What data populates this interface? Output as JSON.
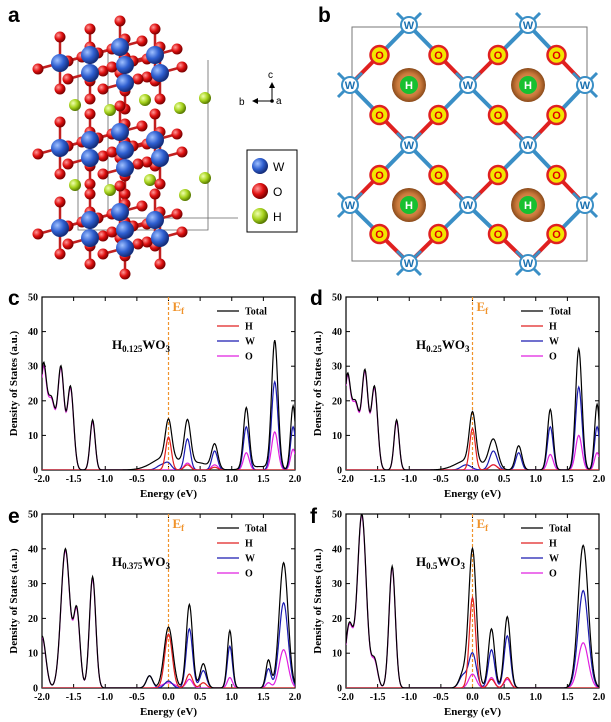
{
  "panel_labels": [
    "a",
    "b",
    "c",
    "d",
    "e",
    "f"
  ],
  "structure_a": {
    "axis_labels": {
      "c": "c",
      "b": "b",
      "a": "a"
    },
    "legend": [
      {
        "symbol": "W",
        "color": "#2f5fd0"
      },
      {
        "symbol": "O",
        "color": "#e01010"
      },
      {
        "symbol": "H",
        "color": "#a8d41e"
      }
    ]
  },
  "structure_b": {
    "atom_letters": {
      "W": "W",
      "O": "O",
      "H": "H"
    },
    "colors": {
      "bond_blue": "#3a8fc6",
      "bond_red": "#e02020",
      "o_fill": "#f2e600",
      "h_halo": "#c8783a",
      "h_core": "#17c030"
    }
  },
  "chart_data": [
    {
      "type": "line",
      "panel": "c",
      "formula_main": "H",
      "formula_sub": "0.125",
      "formula_rest": "WO",
      "formula_sub2": "3",
      "fermi_label": "E",
      "fermi_sub": "f",
      "fermi_x": 0.0,
      "xlabel": "Energy (eV)",
      "ylabel": "Density of States (a.u.)",
      "xlim": [
        -2.0,
        2.0
      ],
      "ylim": [
        0,
        50
      ],
      "xticks": [
        "-2.0",
        "-1.5",
        "-1.0",
        "-0.5",
        "0.0",
        "0.5",
        "1.0",
        "1.5",
        "2.0"
      ],
      "yticks": [
        "0",
        "10",
        "20",
        "30",
        "40",
        "50"
      ],
      "series": [
        {
          "name": "Total",
          "color": "#000000",
          "peaks": [
            [
              -1.98,
              29,
              0.05
            ],
            [
              -1.85,
              20,
              0.06
            ],
            [
              -1.7,
              29,
              0.05
            ],
            [
              -1.55,
              24,
              0.05
            ],
            [
              -1.2,
              14.5,
              0.04
            ],
            [
              -0.05,
              3,
              0.2
            ],
            [
              0.0,
              11,
              0.05
            ],
            [
              0.3,
              12.5,
              0.05
            ],
            [
              0.73,
              7,
              0.05
            ],
            [
              1.23,
              17.5,
              0.045
            ],
            [
              1.68,
              37,
              0.05
            ],
            [
              1.97,
              18.5,
              0.04
            ],
            [
              0.15,
              1,
              0.3
            ],
            [
              0.5,
              1.5,
              0.15
            ],
            [
              1.45,
              1,
              0.2
            ]
          ]
        },
        {
          "name": "H",
          "color": "#e02020",
          "peaks": [
            [
              0.0,
              9.5,
              0.045
            ],
            [
              0.3,
              1.5,
              0.05
            ],
            [
              0.73,
              0.8,
              0.05
            ]
          ]
        },
        {
          "name": "W",
          "color": "#1a1ab0",
          "peaks": [
            [
              -0.1,
              1.5,
              0.08
            ],
            [
              0.0,
              1.5,
              0.05
            ],
            [
              0.3,
              9,
              0.045
            ],
            [
              0.73,
              5.5,
              0.045
            ],
            [
              1.23,
              12.5,
              0.045
            ],
            [
              1.68,
              25.5,
              0.05
            ],
            [
              1.97,
              12.5,
              0.04
            ]
          ]
        },
        {
          "name": "O",
          "color": "#e020e0",
          "peaks": [
            [
              -1.98,
              28,
              0.05
            ],
            [
              -1.85,
              19.5,
              0.06
            ],
            [
              -1.7,
              28.5,
              0.05
            ],
            [
              -1.55,
              23.5,
              0.05
            ],
            [
              -1.2,
              14,
              0.04
            ],
            [
              0.3,
              2,
              0.05
            ],
            [
              0.73,
              1.5,
              0.05
            ],
            [
              1.23,
              5,
              0.045
            ],
            [
              1.68,
              11,
              0.05
            ],
            [
              1.97,
              6,
              0.04
            ]
          ]
        }
      ]
    },
    {
      "type": "line",
      "panel": "d",
      "formula_main": "H",
      "formula_sub": "0.25",
      "formula_rest": "WO",
      "formula_sub2": "3",
      "fermi_label": "E",
      "fermi_sub": "f",
      "fermi_x": 0.0,
      "xlabel": "Energy (eV)",
      "ylabel": "Density of States (a.u.)",
      "xlim": [
        -2.0,
        2.0
      ],
      "ylim": [
        0,
        50
      ],
      "xticks": [
        "-2.0",
        "-1.5",
        "-1.0",
        "-0.5",
        "0.0",
        "0.5",
        "1.0",
        "1.5",
        "2.0"
      ],
      "yticks": [
        "0",
        "10",
        "20",
        "30",
        "40",
        "50"
      ],
      "series": [
        {
          "name": "Total",
          "color": "#000000",
          "peaks": [
            [
              -1.98,
              26,
              0.05
            ],
            [
              -1.85,
              19,
              0.06
            ],
            [
              -1.7,
              28,
              0.05
            ],
            [
              -1.55,
              24,
              0.05
            ],
            [
              -1.2,
              14.5,
              0.04
            ],
            [
              -0.05,
              3,
              0.2
            ],
            [
              0.0,
              14,
              0.05
            ],
            [
              0.33,
              8.5,
              0.07
            ],
            [
              0.73,
              7,
              0.05
            ],
            [
              1.23,
              17.5,
              0.045
            ],
            [
              1.68,
              35,
              0.05
            ],
            [
              1.97,
              19,
              0.04
            ]
          ]
        },
        {
          "name": "H",
          "color": "#e02020",
          "peaks": [
            [
              0.0,
              12,
              0.045
            ],
            [
              0.33,
              1.5,
              0.06
            ]
          ]
        },
        {
          "name": "W",
          "color": "#1a1ab0",
          "peaks": [
            [
              -0.1,
              1.5,
              0.08
            ],
            [
              0.33,
              5.5,
              0.06
            ],
            [
              0.73,
              5,
              0.045
            ],
            [
              1.23,
              12.5,
              0.045
            ],
            [
              1.68,
              24,
              0.05
            ],
            [
              1.97,
              12.5,
              0.04
            ]
          ]
        },
        {
          "name": "O",
          "color": "#e020e0",
          "peaks": [
            [
              -1.98,
              25.5,
              0.05
            ],
            [
              -1.85,
              18.5,
              0.06
            ],
            [
              -1.7,
              27.5,
              0.05
            ],
            [
              -1.55,
              23.5,
              0.05
            ],
            [
              -1.2,
              14,
              0.04
            ],
            [
              0.33,
              1.5,
              0.06
            ],
            [
              1.23,
              4.5,
              0.045
            ],
            [
              1.68,
              10,
              0.05
            ],
            [
              1.97,
              5,
              0.04
            ]
          ]
        }
      ]
    },
    {
      "type": "line",
      "panel": "e",
      "formula_main": "H",
      "formula_sub": "0.375",
      "formula_rest": "WO",
      "formula_sub2": "3",
      "fermi_label": "E",
      "fermi_sub": "f",
      "fermi_x": 0.0,
      "xlabel": "Energy (eV)",
      "ylabel": "Density of States (a.u.)",
      "xlim": [
        -2.0,
        2.0
      ],
      "ylim": [
        0,
        50
      ],
      "xticks": [
        "-2.0",
        "-1.5",
        "-1.0",
        "-0.5",
        "0.0",
        "0.5",
        "1.0",
        "1.5",
        "2.0"
      ],
      "yticks": [
        "0",
        "10",
        "20",
        "30",
        "40",
        "50"
      ],
      "series": [
        {
          "name": "Total",
          "color": "#000000",
          "peaks": [
            [
              -2.0,
              15,
              0.06
            ],
            [
              -1.63,
              40,
              0.07
            ],
            [
              -1.45,
              22,
              0.05
            ],
            [
              -1.2,
              32,
              0.05
            ],
            [
              -0.3,
              3.5,
              0.05
            ],
            [
              0.0,
              17.5,
              0.07
            ],
            [
              0.33,
              24,
              0.05
            ],
            [
              0.55,
              7,
              0.05
            ],
            [
              0.97,
              16.5,
              0.04
            ],
            [
              1.58,
              8,
              0.04
            ],
            [
              1.82,
              36,
              0.07
            ]
          ]
        },
        {
          "name": "H",
          "color": "#e02020",
          "peaks": [
            [
              0.0,
              15.5,
              0.06
            ],
            [
              0.33,
              4,
              0.05
            ],
            [
              0.55,
              1.5,
              0.05
            ]
          ]
        },
        {
          "name": "W",
          "color": "#1a1ab0",
          "peaks": [
            [
              -0.3,
              3.5,
              0.05
            ],
            [
              0.0,
              2,
              0.06
            ],
            [
              0.33,
              17,
              0.05
            ],
            [
              0.55,
              5,
              0.05
            ],
            [
              0.97,
              12,
              0.04
            ],
            [
              1.58,
              5.5,
              0.04
            ],
            [
              1.82,
              24.5,
              0.07
            ]
          ]
        },
        {
          "name": "O",
          "color": "#e020e0",
          "peaks": [
            [
              -2.0,
              14.5,
              0.06
            ],
            [
              -1.63,
              39.5,
              0.07
            ],
            [
              -1.45,
              21.5,
              0.05
            ],
            [
              -1.2,
              31.5,
              0.05
            ],
            [
              0.0,
              1.5,
              0.1
            ],
            [
              0.33,
              2.5,
              0.05
            ],
            [
              0.97,
              3,
              0.04
            ],
            [
              1.58,
              1.5,
              0.04
            ],
            [
              1.82,
              11,
              0.07
            ]
          ]
        }
      ]
    },
    {
      "type": "line",
      "panel": "f",
      "formula_main": "H",
      "formula_sub": "0.5",
      "formula_rest": "WO",
      "formula_sub2": "3",
      "fermi_label": "E",
      "fermi_sub": "f",
      "fermi_x": 0.0,
      "xlabel": "Energy (eV)",
      "ylabel": "Density of States (a.u.)",
      "xlim": [
        -2.0,
        2.0
      ],
      "ylim": [
        0,
        50
      ],
      "xticks": [
        "-2.0",
        "-1.5",
        "-1.0",
        "-0.5",
        "0.0",
        "0.5",
        "1.0",
        "1.5",
        "2.0"
      ],
      "yticks": [
        "0",
        "10",
        "20",
        "30",
        "40",
        "50"
      ],
      "series": [
        {
          "name": "Total",
          "color": "#000000",
          "peaks": [
            [
              -1.95,
              18,
              0.06
            ],
            [
              -1.75,
              50,
              0.07
            ],
            [
              -1.55,
              8,
              0.05
            ],
            [
              -1.27,
              35,
              0.05
            ],
            [
              -0.15,
              4,
              0.06
            ],
            [
              0.0,
              40,
              0.06
            ],
            [
              0.3,
              17,
              0.05
            ],
            [
              0.55,
              20.5,
              0.05
            ],
            [
              1.75,
              41,
              0.08
            ]
          ]
        },
        {
          "name": "H",
          "color": "#e02020",
          "peaks": [
            [
              0.0,
              26,
              0.05
            ],
            [
              0.3,
              2.5,
              0.05
            ],
            [
              0.55,
              3,
              0.05
            ]
          ]
        },
        {
          "name": "W",
          "color": "#1a1ab0",
          "peaks": [
            [
              -0.15,
              3.5,
              0.06
            ],
            [
              0.0,
              10,
              0.06
            ],
            [
              0.3,
              11,
              0.05
            ],
            [
              0.55,
              15,
              0.05
            ],
            [
              1.75,
              28,
              0.08
            ]
          ]
        },
        {
          "name": "O",
          "color": "#e020e0",
          "peaks": [
            [
              -1.95,
              17.5,
              0.06
            ],
            [
              -1.75,
              49.5,
              0.07
            ],
            [
              -1.55,
              7.5,
              0.05
            ],
            [
              -1.27,
              34.5,
              0.05
            ],
            [
              0.0,
              4,
              0.06
            ],
            [
              0.3,
              3,
              0.05
            ],
            [
              0.55,
              2.5,
              0.05
            ],
            [
              1.75,
              13,
              0.08
            ]
          ]
        }
      ]
    }
  ]
}
